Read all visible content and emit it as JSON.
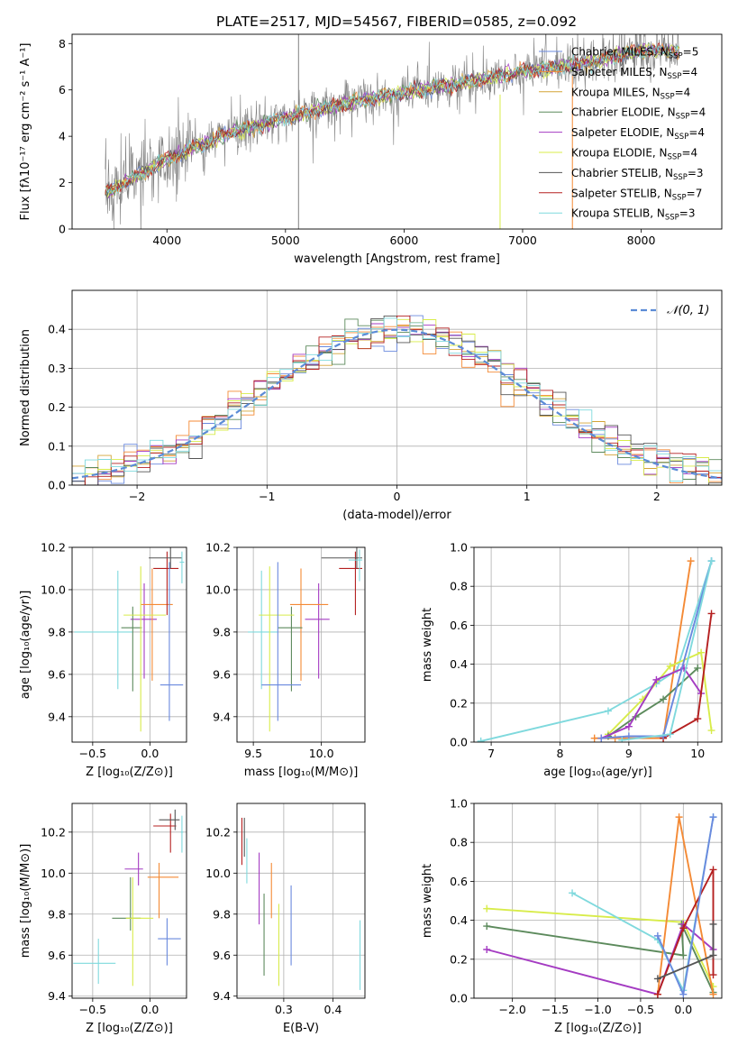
{
  "figure_title": "PLATE=2517, MJD=54567, FIBERID=0585, z=0.092",
  "chart_data": [
    {
      "id": "spectrum",
      "type": "line",
      "xlabel": "wavelength [Angstrom, rest frame]",
      "ylabel": "Flux [fλ10⁻¹⁷ erg cm⁻² s⁻¹ A⁻¹]",
      "xlim": [
        3200,
        8680
      ],
      "ylim": [
        0,
        8.4
      ],
      "xticks": [
        4000,
        5000,
        6000,
        7000,
        8000
      ],
      "yticks": [
        0,
        2,
        4,
        6,
        8
      ],
      "grid": false,
      "legend_position": "right",
      "series": [
        {
          "name": "Chabrier MILES, N_SSP=5",
          "label_main": "Chabrier MILES, N",
          "label_sub": "SSP",
          "label_end": "=5",
          "color": "#6a89de"
        },
        {
          "name": "Salpeter MILES, N_SSP=4",
          "label_main": "Salpeter MILES, N",
          "label_sub": "SSP",
          "label_end": "=4",
          "color": "#f48a35"
        },
        {
          "name": "Kroupa MILES, N_SSP=4",
          "label_main": "Kroupa MILES, N",
          "label_sub": "SSP",
          "label_end": "=4",
          "color": "#d4a437"
        },
        {
          "name": "Chabrier ELODIE, N_SSP=4",
          "label_main": "Chabrier ELODIE, N",
          "label_sub": "SSP",
          "label_end": "=4",
          "color": "#5c8a5c"
        },
        {
          "name": "Salpeter ELODIE, N_SSP=4",
          "label_main": "Salpeter ELODIE, N",
          "label_sub": "SSP",
          "label_end": "=4",
          "color": "#a43bc2"
        },
        {
          "name": "Kroupa ELODIE, N_SSP=4",
          "label_main": "Kroupa ELODIE, N",
          "label_sub": "SSP",
          "label_end": "=4",
          "color": "#d8ec4a"
        },
        {
          "name": "Chabrier STELIB, N_SSP=3",
          "label_main": "Chabrier STELIB, N",
          "label_sub": "SSP",
          "label_end": "=3",
          "color": "#555555"
        },
        {
          "name": "Salpeter STELIB, N_SSP=7",
          "label_main": "Salpeter STELIB, N",
          "label_sub": "SSP",
          "label_end": "=7",
          "color": "#b52020"
        },
        {
          "name": "Kroupa STELIB, N_SSP=3",
          "label_main": "Kroupa STELIB, N",
          "label_sub": "SSP",
          "label_end": "=3",
          "color": "#7fd9dd"
        }
      ],
      "trend": {
        "x": [
          3500,
          4000,
          4500,
          5000,
          5500,
          6000,
          6500,
          7000,
          7500,
          8000,
          8300
        ],
        "y": [
          1.6,
          3.0,
          4.1,
          4.8,
          5.4,
          5.9,
          6.3,
          6.8,
          7.1,
          7.7,
          7.7
        ]
      }
    },
    {
      "id": "residuals",
      "type": "line",
      "xlabel": "(data-model)/error",
      "ylabel": "Normed distribution",
      "xlim": [
        -2.5,
        2.5
      ],
      "ylim": [
        0,
        0.5
      ],
      "xticks": [
        -2,
        -1,
        0,
        1,
        2
      ],
      "yticks": [
        0.0,
        0.1,
        0.2,
        0.3,
        0.4
      ],
      "grid": true,
      "legend_position": "top-right",
      "legend_label": "𝒩(0, 1)",
      "normal_color": "#5b8bd6"
    },
    {
      "id": "age_vs_Z",
      "type": "scatter",
      "xlabel": "Z [log₁₀(Z/Z⊙)]",
      "ylabel": "age  [log₁₀(age/yr)]",
      "xlim": [
        -0.68,
        0.32
      ],
      "ylim": [
        9.28,
        10.2
      ],
      "xticks": [
        -0.5,
        0.0
      ],
      "yticks": [
        9.4,
        9.6,
        9.8,
        10.0,
        10.2
      ],
      "grid": true,
      "points": [
        {
          "x": -0.28,
          "y": 9.8,
          "xerr": [
            0.38,
            0.13
          ],
          "yerr": [
            0.27,
            0.29
          ],
          "series": "Kroupa STELIB"
        },
        {
          "x": -0.05,
          "y": 9.86,
          "xerr": [
            0.12,
            0.11
          ],
          "yerr": [
            0.28,
            0.17
          ],
          "series": "Salpeter ELODIE"
        },
        {
          "x": 0.02,
          "y": 9.93,
          "xerr": [
            0.1,
            0.18
          ],
          "yerr": [
            0.36,
            0.17
          ],
          "series": "Salpeter MILES"
        },
        {
          "x": -0.15,
          "y": 9.82,
          "xerr": [
            0.1,
            0.08
          ],
          "yerr": [
            0.3,
            0.1
          ],
          "series": "Chabrier ELODIE"
        },
        {
          "x": -0.08,
          "y": 9.88,
          "xerr": [
            0.15,
            0.22
          ],
          "yerr": [
            0.55,
            0.23
          ],
          "series": "Kroupa ELODIE"
        },
        {
          "x": 0.15,
          "y": 10.1,
          "xerr": [
            0.12,
            0.1
          ],
          "yerr": [
            0.22,
            0.08
          ],
          "series": "Salpeter STELIB"
        },
        {
          "x": 0.17,
          "y": 9.55,
          "xerr": [
            0.08,
            0.12
          ],
          "yerr": [
            0.17,
            0.58
          ],
          "series": "Chabrier MILES"
        },
        {
          "x": 0.18,
          "y": 10.15,
          "xerr": [
            0.19,
            0.1
          ],
          "yerr": [
            0.05,
            0.05
          ],
          "series": "Chabrier STELIB"
        },
        {
          "x": 0.28,
          "y": 10.13,
          "xerr": [
            0.02,
            0.02
          ],
          "yerr": [
            0.1,
            0.05
          ],
          "series": "Kroupa STELIB"
        }
      ]
    },
    {
      "id": "age_vs_mass",
      "type": "scatter",
      "xlabel": "mass [log₁₀(M/M⊙)]",
      "ylabel": "",
      "xlim": [
        9.38,
        10.32
      ],
      "ylim": [
        9.28,
        10.2
      ],
      "xticks": [
        9.5,
        10.0
      ],
      "yticks": [
        9.4,
        9.6,
        9.8,
        10.0,
        10.2
      ],
      "grid": true,
      "points": [
        {
          "x": 9.56,
          "y": 9.8,
          "xerr": [
            0.1,
            0.12
          ],
          "yerr": [
            0.27,
            0.29
          ],
          "series": "Kroupa STELIB"
        },
        {
          "x": 9.98,
          "y": 9.86,
          "xerr": [
            0.1,
            0.08
          ],
          "yerr": [
            0.28,
            0.17
          ],
          "series": "Salpeter ELODIE"
        },
        {
          "x": 9.85,
          "y": 9.93,
          "xerr": [
            0.08,
            0.2
          ],
          "yerr": [
            0.36,
            0.17
          ],
          "series": "Salpeter MILES"
        },
        {
          "x": 9.78,
          "y": 9.82,
          "xerr": [
            0.1,
            0.08
          ],
          "yerr": [
            0.3,
            0.1
          ],
          "series": "Chabrier ELODIE"
        },
        {
          "x": 9.62,
          "y": 9.88,
          "xerr": [
            0.08,
            0.18
          ],
          "yerr": [
            0.55,
            0.23
          ],
          "series": "Kroupa ELODIE"
        },
        {
          "x": 10.25,
          "y": 10.1,
          "xerr": [
            0.12,
            0.05
          ],
          "yerr": [
            0.22,
            0.08
          ],
          "series": "Salpeter STELIB"
        },
        {
          "x": 9.68,
          "y": 9.55,
          "xerr": [
            0.12,
            0.17
          ],
          "yerr": [
            0.17,
            0.58
          ],
          "series": "Chabrier MILES"
        },
        {
          "x": 10.26,
          "y": 10.15,
          "xerr": [
            0.26,
            0.04
          ],
          "yerr": [
            0.05,
            0.05
          ],
          "series": "Chabrier STELIB"
        },
        {
          "x": 10.28,
          "y": 10.14,
          "xerr": [
            0.08,
            0.02
          ],
          "yerr": [
            0.1,
            0.05
          ],
          "series": "Kroupa STELIB"
        }
      ]
    },
    {
      "id": "mass_weight_vs_age",
      "type": "line",
      "xlabel": "age  [log₁₀(age/yr)]",
      "ylabel": "mass weight",
      "xlim": [
        6.75,
        10.35
      ],
      "ylim": [
        0,
        1.0
      ],
      "xticks": [
        7,
        8,
        9,
        10
      ],
      "yticks": [
        0.0,
        0.2,
        0.4,
        0.6,
        0.8,
        1.0
      ],
      "grid": true,
      "lines": [
        {
          "series": "Kroupa STELIB",
          "x": [
            6.85,
            8.7,
            9.4,
            9.7,
            10.2
          ],
          "y": [
            0.005,
            0.16,
            0.3,
            0.37,
            0.93
          ]
        },
        {
          "series": "Salpeter MILES",
          "x": [
            8.5,
            8.8,
            9.5,
            9.9
          ],
          "y": [
            0.02,
            0.02,
            0.02,
            0.93
          ]
        },
        {
          "series": "Kroupa ELODIE",
          "x": [
            8.7,
            9.2,
            9.6,
            10.05,
            10.2
          ],
          "y": [
            0.04,
            0.22,
            0.39,
            0.46,
            0.06
          ]
        },
        {
          "series": "Chabrier ELODIE",
          "x": [
            8.7,
            9.1,
            9.5,
            10.0
          ],
          "y": [
            0.03,
            0.13,
            0.22,
            0.38
          ]
        },
        {
          "series": "Salpeter ELODIE",
          "x": [
            8.6,
            9.0,
            9.4,
            9.8,
            10.05
          ],
          "y": [
            0.02,
            0.08,
            0.32,
            0.38,
            0.25
          ]
        },
        {
          "series": "Salpeter STELIB",
          "x": [
            9.5,
            10.0,
            10.2
          ],
          "y": [
            0.02,
            0.12,
            0.66
          ]
        },
        {
          "series": "Chabrier MILES",
          "x": [
            8.6,
            9.0,
            9.5,
            10.2
          ],
          "y": [
            0.02,
            0.03,
            0.03,
            0.93
          ]
        },
        {
          "series": "Kroupa STELIB",
          "x": [
            8.9,
            9.6,
            10.2
          ],
          "y": [
            0.01,
            0.04,
            0.93
          ]
        }
      ]
    },
    {
      "id": "mass_vs_Z",
      "type": "scatter",
      "xlabel": "Z [log₁₀(Z/Z⊙)]",
      "ylabel": "mass [log₁₀(M/M⊙)]",
      "xlim": [
        -0.68,
        0.32
      ],
      "ylim": [
        9.39,
        10.34
      ],
      "xticks": [
        -0.5,
        0.0
      ],
      "yticks": [
        9.4,
        9.6,
        9.8,
        10.0,
        10.2
      ],
      "grid": true,
      "points": [
        {
          "x": -0.45,
          "y": 9.56,
          "xerr": [
            0.22,
            0.15
          ],
          "yerr": [
            0.1,
            0.12
          ],
          "series": "Kroupa STELIB"
        },
        {
          "x": -0.1,
          "y": 10.02,
          "xerr": [
            0.12,
            0.04
          ],
          "yerr": [
            0.08,
            0.08
          ],
          "series": "Salpeter ELODIE"
        },
        {
          "x": 0.08,
          "y": 9.98,
          "xerr": [
            0.1,
            0.17
          ],
          "yerr": [
            0.2,
            0.07
          ],
          "series": "Salpeter MILES"
        },
        {
          "x": -0.17,
          "y": 9.78,
          "xerr": [
            0.16,
            0.09
          ],
          "yerr": [
            0.06,
            0.2
          ],
          "series": "Chabrier ELODIE"
        },
        {
          "x": -0.15,
          "y": 9.78,
          "xerr": [
            0.06,
            0.18
          ],
          "yerr": [
            0.33,
            0.2
          ],
          "series": "Kroupa ELODIE"
        },
        {
          "x": 0.18,
          "y": 10.23,
          "xerr": [
            0.15,
            0.05
          ],
          "yerr": [
            0.13,
            0.06
          ],
          "series": "Salpeter STELIB"
        },
        {
          "x": 0.15,
          "y": 9.68,
          "xerr": [
            0.08,
            0.12
          ],
          "yerr": [
            0.13,
            0.1
          ],
          "series": "Chabrier MILES"
        },
        {
          "x": 0.22,
          "y": 10.26,
          "xerr": [
            0.14,
            0.04
          ],
          "yerr": [
            0.05,
            0.05
          ],
          "series": "Chabrier STELIB"
        },
        {
          "x": 0.28,
          "y": 10.2,
          "xerr": [
            0.01,
            0.01
          ],
          "yerr": [
            0.1,
            0.08
          ],
          "series": "Kroupa STELIB"
        }
      ]
    },
    {
      "id": "mass_vs_EBV",
      "type": "scatter",
      "xlabel": "E(B-V)",
      "ylabel": "",
      "xlim": [
        0.205,
        0.465
      ],
      "ylim": [
        9.39,
        10.34
      ],
      "xticks": [
        0.2,
        0.3,
        0.4
      ],
      "yticks": [
        9.4,
        9.6,
        9.8,
        10.0,
        10.2
      ],
      "grid": true,
      "points": [
        {
          "x": 0.215,
          "y": 10.17,
          "yerr": [
            0.13,
            0.1
          ],
          "series": "Salpeter STELIB"
        },
        {
          "x": 0.22,
          "y": 10.22,
          "yerr": [
            0.14,
            0.05
          ],
          "series": "Chabrier STELIB"
        },
        {
          "x": 0.225,
          "y": 10.07,
          "yerr": [
            0.12,
            0.1
          ],
          "series": "Kroupa STELIB"
        },
        {
          "x": 0.25,
          "y": 9.95,
          "yerr": [
            0.2,
            0.15
          ],
          "series": "Salpeter ELODIE"
        },
        {
          "x": 0.26,
          "y": 9.75,
          "yerr": [
            0.25,
            0.15
          ],
          "series": "Chabrier ELODIE"
        },
        {
          "x": 0.275,
          "y": 9.92,
          "yerr": [
            0.14,
            0.13
          ],
          "series": "Salpeter MILES"
        },
        {
          "x": 0.29,
          "y": 9.7,
          "yerr": [
            0.25,
            0.15
          ],
          "series": "Kroupa ELODIE"
        },
        {
          "x": 0.315,
          "y": 9.75,
          "yerr": [
            0.2,
            0.19
          ],
          "series": "Chabrier MILES"
        },
        {
          "x": 0.455,
          "y": 9.6,
          "yerr": [
            0.17,
            0.17
          ],
          "series": "Kroupa STELIB"
        }
      ]
    },
    {
      "id": "mass_weight_vs_Z",
      "type": "line",
      "xlabel": "Z [log₁₀(Z/Z⊙)]",
      "ylabel": "mass weight",
      "xlim": [
        -2.45,
        0.45
      ],
      "ylim": [
        0,
        1.0
      ],
      "xticks": [
        -2.0,
        -1.5,
        -1.0,
        -0.5,
        0.0
      ],
      "yticks": [
        0.0,
        0.2,
        0.4,
        0.6,
        0.8,
        1.0
      ],
      "grid": true,
      "lines": [
        {
          "series": "Kroupa ELODIE",
          "x": [
            -2.3,
            0.0,
            0.35
          ],
          "y": [
            0.46,
            0.39,
            0.06
          ]
        },
        {
          "series": "Chabrier ELODIE",
          "x": [
            -2.3,
            0.0,
            -0.02,
            0.35
          ],
          "y": [
            0.37,
            0.22,
            0.38,
            0.03
          ]
        },
        {
          "series": "Salpeter ELODIE",
          "x": [
            -2.3,
            -0.3,
            0.0,
            0.35
          ],
          "y": [
            0.25,
            0.02,
            0.38,
            0.25
          ]
        },
        {
          "series": "Kroupa STELIB",
          "x": [
            -1.3,
            -0.3,
            0.0,
            0.35
          ],
          "y": [
            0.54,
            0.3,
            0.04,
            0.93
          ]
        },
        {
          "series": "Salpeter MILES",
          "x": [
            -0.3,
            -0.05,
            0.35
          ],
          "y": [
            0.02,
            0.93,
            0.02
          ]
        },
        {
          "series": "Salpeter STELIB",
          "x": [
            -0.3,
            0.0,
            0.35,
            0.35
          ],
          "y": [
            0.02,
            0.36,
            0.66,
            0.12
          ]
        },
        {
          "series": "Chabrier MILES",
          "x": [
            -0.3,
            0.0,
            0.35
          ],
          "y": [
            0.32,
            0.02,
            0.93
          ]
        },
        {
          "series": "Chabrier STELIB",
          "x": [
            -0.3,
            0.35,
            0.35
          ],
          "y": [
            0.1,
            0.22,
            0.38
          ]
        }
      ]
    }
  ]
}
